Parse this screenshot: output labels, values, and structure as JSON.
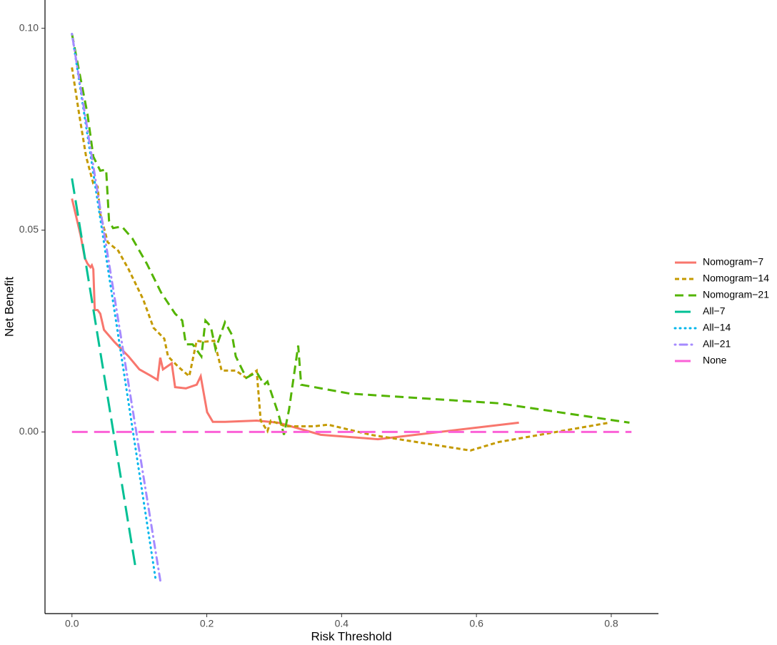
{
  "chart_data": {
    "type": "line",
    "x_label": "Risk Threshold",
    "y_label": "Net Benefit",
    "xlim": [
      -0.04,
      0.87
    ],
    "ylim": [
      -0.045,
      0.107
    ],
    "xticks": [
      {
        "value": 0,
        "label": "0.0"
      },
      0.2,
      0.4,
      0.6,
      0.8
    ],
    "yticks": [
      {
        "value": 0,
        "label": "0.00"
      },
      0.05,
      {
        "value": 0.1,
        "label": "0.10"
      }
    ],
    "grid": false,
    "legend": "right",
    "series": [
      {
        "name": "Nomogram−7",
        "color": "#F8766D",
        "dash": "solid",
        "x": [
          0,
          0.0127,
          0.019,
          0.023,
          0.0274,
          0.0295,
          0.0317,
          0.0338,
          0.038,
          0.042,
          0.0475,
          0.063,
          0.084,
          0.1,
          0.116,
          0.127,
          0.131,
          0.135,
          0.148,
          0.153,
          0.169,
          0.185,
          0.191,
          0.2005,
          0.209,
          0.227,
          0.274,
          0.306,
          0.369,
          0.454,
          0.663
        ],
        "values": [
          0.0578,
          0.0488,
          0.0431,
          0.0417,
          0.0408,
          0.0413,
          0.0403,
          0.0302,
          0.0302,
          0.0293,
          0.0253,
          0.0223,
          0.0187,
          0.0155,
          0.014,
          0.0129,
          0.0184,
          0.0155,
          0.017,
          0.0111,
          0.0108,
          0.0117,
          0.0138,
          0.0049,
          0.0025,
          0.0025,
          0.0028,
          0.0023,
          -0.0007,
          -0.0018,
          0.0023
        ]
      },
      {
        "name": "Nomogram−14",
        "color": "#C49A00",
        "dash": "dotted",
        "x": [
          0,
          0.0106,
          0.021,
          0.0317,
          0.038,
          0.042,
          0.053,
          0.0686,
          0.084,
          0.1055,
          0.121,
          0.137,
          0.1425,
          0.158,
          0.174,
          0.185,
          0.195,
          0.211,
          0.222,
          0.243,
          0.2586,
          0.274,
          0.28,
          0.29,
          0.295,
          0.3166,
          0.359,
          0.38,
          0.443,
          0.591,
          0.633,
          0.797
        ],
        "values": [
          0.0903,
          0.0788,
          0.0682,
          0.0615,
          0.0608,
          0.054,
          0.047,
          0.0449,
          0.0403,
          0.0329,
          0.0258,
          0.0231,
          0.0187,
          0.0161,
          0.0138,
          0.0226,
          0.0223,
          0.0226,
          0.0152,
          0.0152,
          0.0134,
          0.0152,
          0.0028,
          0.0002,
          0.0028,
          0.0014,
          0.0014,
          0.0018,
          -0.0007,
          -0.0046,
          -0.0025,
          0.0023
        ]
      },
      {
        "name": "Nomogram−21",
        "color": "#53B400",
        "dash": "dashed",
        "x": [
          0,
          0.0106,
          0.023,
          0.0317,
          0.042,
          0.0507,
          0.055,
          0.061,
          0.074,
          0.0897,
          0.111,
          0.132,
          0.153,
          0.1636,
          0.169,
          0.179,
          0.192,
          0.198,
          0.206,
          0.213,
          0.227,
          0.2375,
          0.243,
          0.2586,
          0.274,
          0.285,
          0.29,
          0.306,
          0.3145,
          0.322,
          0.3356,
          0.34,
          0.412,
          0.633,
          0.827
        ],
        "values": [
          0.0986,
          0.0894,
          0.0788,
          0.0682,
          0.0647,
          0.065,
          0.0523,
          0.0505,
          0.0509,
          0.0479,
          0.0417,
          0.0346,
          0.0293,
          0.0276,
          0.0217,
          0.0217,
          0.0187,
          0.0276,
          0.0261,
          0.0205,
          0.0272,
          0.024,
          0.0187,
          0.0134,
          0.0148,
          0.0117,
          0.0125,
          0.0046,
          -0.0007,
          0.0055,
          0.0214,
          0.0117,
          0.0095,
          0.0071,
          0.0023
        ]
      },
      {
        "name": "All−7",
        "color": "#00C094",
        "dash": "longdash",
        "x": [
          0,
          0.095
        ],
        "values": [
          0.0628,
          -0.0343
        ]
      },
      {
        "name": "All−14",
        "color": "#00B6EB",
        "dash": "dots",
        "x": [
          0,
          0.1245
        ],
        "values": [
          0.0986,
          -0.0369
        ]
      },
      {
        "name": "All−21",
        "color": "#A58AFF",
        "dash": "dotdash",
        "x": [
          0,
          0.132
        ],
        "values": [
          0.0986,
          -0.0378
        ]
      },
      {
        "name": "None",
        "color": "#FB61D7",
        "dash": "longdash",
        "x": [
          0,
          0.83
        ],
        "values": [
          0,
          0
        ]
      }
    ]
  }
}
